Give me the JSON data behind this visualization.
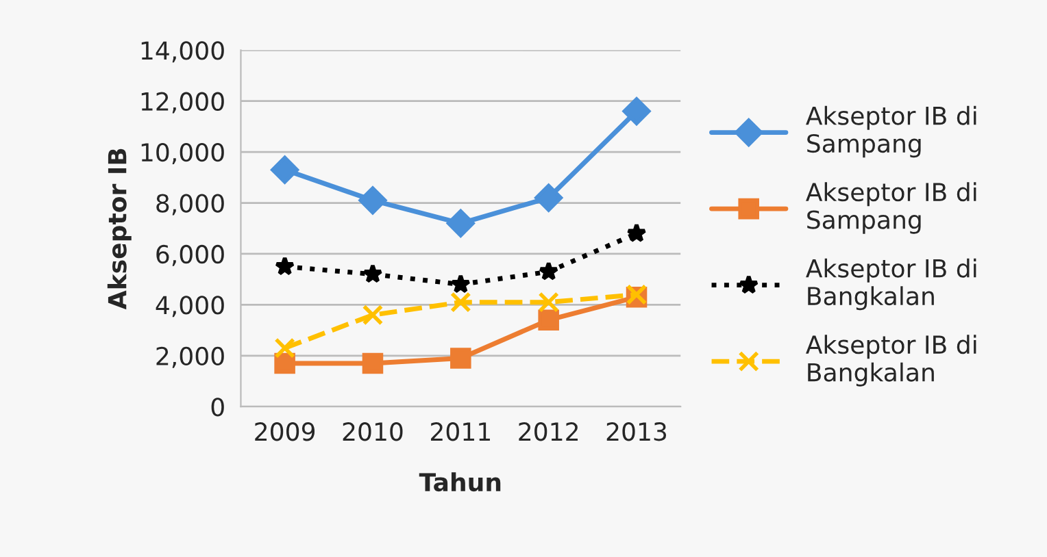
{
  "chart_data": {
    "type": "line",
    "xlabel": "Tahun",
    "ylabel": "Akseptor IB",
    "categories": [
      "2009",
      "2010",
      "2011",
      "2012",
      "2013"
    ],
    "series": [
      {
        "name": "Akseptor IB di Sampang",
        "color": "#4a90d9",
        "marker": "diamond",
        "line_style": "solid",
        "values": [
          9300,
          8100,
          7200,
          8200,
          11600
        ]
      },
      {
        "name": "Akseptor IB di Sampang",
        "color": "#ed7d31",
        "marker": "square",
        "line_style": "solid",
        "values": [
          1700,
          1700,
          1900,
          3400,
          4300
        ]
      },
      {
        "name": "Akseptor IB di Bangkalan",
        "color": "#000000",
        "marker": "star",
        "line_style": "dotted",
        "values": [
          5500,
          5200,
          4800,
          5300,
          6800
        ]
      },
      {
        "name": "Akseptor IB di Bangkalan",
        "color": "#ffc000",
        "marker": "cross",
        "line_style": "dashed",
        "values": [
          2300,
          3600,
          4100,
          4100,
          4400
        ]
      }
    ],
    "ylim": [
      0,
      14000
    ],
    "yticks": [
      {
        "value": 0,
        "label": "0"
      },
      {
        "value": 2000,
        "label": "2,000"
      },
      {
        "value": 4000,
        "label": "4,000"
      },
      {
        "value": 6000,
        "label": "6,000"
      },
      {
        "value": 8000,
        "label": "8,000"
      },
      {
        "value": 10000,
        "label": "10,000"
      },
      {
        "value": 12000,
        "label": "12,000"
      },
      {
        "value": 14000,
        "label": "14,000"
      }
    ],
    "grid": "y",
    "legend": "right"
  }
}
